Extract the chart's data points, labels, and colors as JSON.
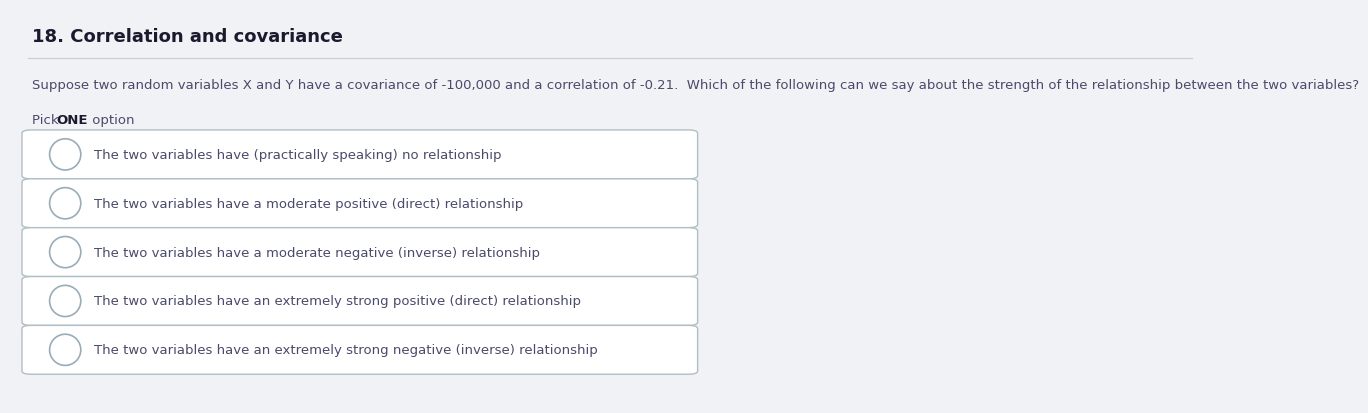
{
  "title": "18. Correlation and covariance",
  "question": "Suppose two random variables X and Y have a covariance of -100,000 and a correlation of -0.21.  Which of the following can we say about the strength of the relationship between the two variables?",
  "pick_text_normal": "Pick ",
  "pick_text_bold": "ONE",
  "pick_text_after": " option",
  "options": [
    "The two variables have (practically speaking) no relationship",
    "The two variables have a moderate positive (direct) relationship",
    "The two variables have a moderate negative (inverse) relationship",
    "The two variables have an extremely strong positive (direct) relationship",
    "The two variables have an extremely strong negative (inverse) relationship"
  ],
  "bg_color": "#f0f2f5",
  "box_bg_color": "#ffffff",
  "box_border_color": "#b0bec5",
  "title_color": "#1a1a2e",
  "question_color": "#4a4a6a",
  "option_color": "#4a4a6a",
  "pick_color": "#4a4a6a",
  "pick_bold_color": "#1a1a2e",
  "separator_color": "#cccccc",
  "circle_edge_color": "#9aacb8",
  "title_fontsize": 13,
  "question_fontsize": 9.5,
  "option_fontsize": 9.5,
  "pick_fontsize": 9.5
}
